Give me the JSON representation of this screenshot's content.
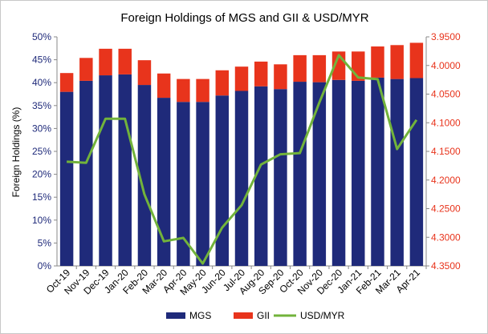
{
  "chart_data": {
    "type": "bar",
    "title": "Foreign Holdings of MGS and GII  & USD/MYR",
    "ylabel": "Foreign Holdings (%)",
    "xlabel": "",
    "stacked": true,
    "categories": [
      "Oct-19",
      "Nov-19",
      "Dec-19",
      "Jan-20",
      "Feb-20",
      "Mar-20",
      "Apr-20",
      "May-20",
      "Jun-20",
      "Jul-20",
      "Aug-20",
      "Sep-20",
      "Oct-20",
      "Nov-20",
      "Dec-20",
      "Jan-21",
      "Feb-21",
      "Mar-21",
      "Apr-21"
    ],
    "ylim": [
      0,
      50
    ],
    "y_ticks": [
      0,
      5,
      10,
      15,
      20,
      25,
      30,
      35,
      40,
      45,
      50
    ],
    "y_tick_labels": [
      "0%",
      "5%",
      "10%",
      "15%",
      "20%",
      "25%",
      "30%",
      "35%",
      "40%",
      "45%",
      "50%"
    ],
    "y2lim": [
      3.95,
      4.35
    ],
    "y2_inverted": true,
    "y2_ticks": [
      3.95,
      4.0,
      4.05,
      4.1,
      4.15,
      4.2,
      4.25,
      4.3,
      4.35
    ],
    "y2_tick_labels": [
      "3.9500",
      "4.0000",
      "4.0500",
      "4.1000",
      "4.1500",
      "4.2000",
      "4.2500",
      "4.3000",
      "4.3500"
    ],
    "series": [
      {
        "name": "MGS",
        "type": "bar",
        "color": "#1f2a7a",
        "values": [
          38.0,
          40.4,
          41.6,
          41.8,
          39.5,
          36.7,
          35.8,
          35.8,
          37.2,
          38.2,
          39.2,
          38.6,
          40.2,
          40.1,
          40.6,
          40.4,
          41.1,
          40.8,
          41.0
        ]
      },
      {
        "name": "GII",
        "type": "bar",
        "color": "#e8341c",
        "values": [
          4.1,
          5.0,
          5.8,
          5.6,
          5.4,
          5.3,
          5.0,
          5.0,
          5.5,
          5.3,
          5.4,
          5.4,
          5.8,
          5.9,
          6.2,
          6.4,
          6.8,
          7.4,
          7.7
        ]
      },
      {
        "name": "USD/MYR",
        "type": "line",
        "axis": "right",
        "color": "#72b33b",
        "values": [
          4.168,
          4.17,
          4.093,
          4.093,
          4.225,
          4.307,
          4.301,
          4.346,
          4.283,
          4.244,
          4.173,
          4.155,
          4.153,
          4.065,
          3.982,
          4.021,
          4.024,
          4.146,
          4.095
        ]
      }
    ],
    "legend": [
      "MGS",
      "GII",
      "USD/MYR"
    ],
    "legend_position": "bottom",
    "grid": false
  }
}
